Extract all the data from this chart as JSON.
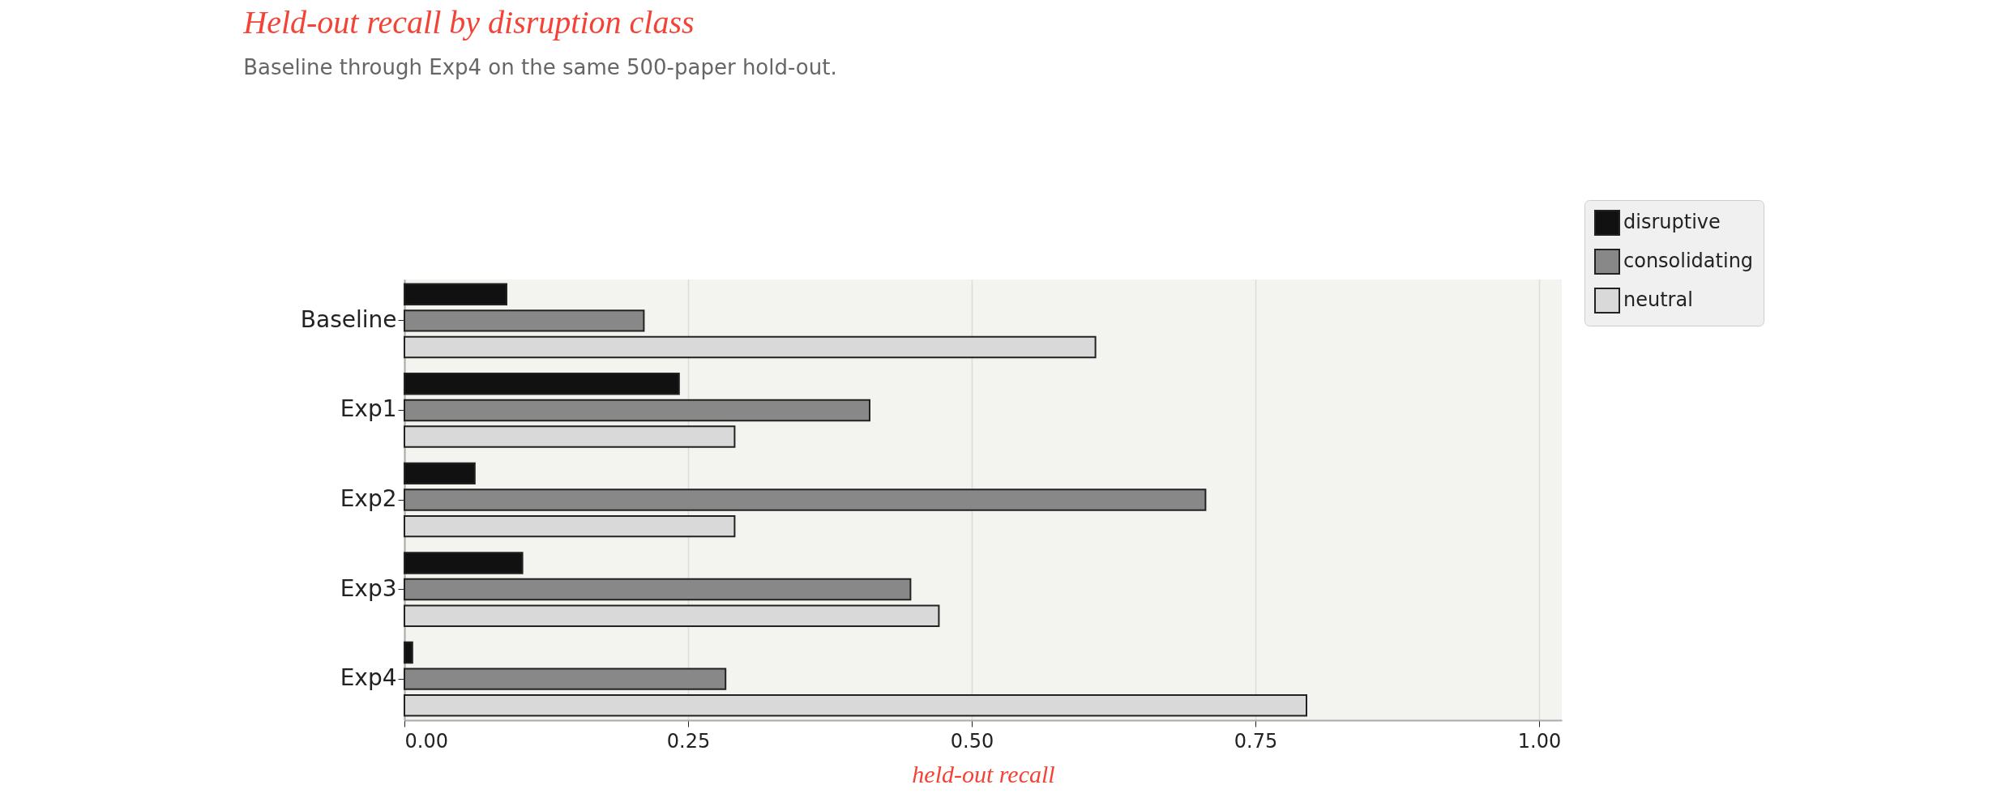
{
  "chart_data": {
    "type": "bar",
    "orientation": "horizontal",
    "title": "Held-out recall by disruption class",
    "subtitle": "Baseline through Exp4 on the same 500-paper hold-out.",
    "xlabel": "held-out recall",
    "categories": [
      "Baseline",
      "Exp1",
      "Exp2",
      "Exp3",
      "Exp4"
    ],
    "series": [
      {
        "name": "disruptive",
        "color": "#111111",
        "values": [
          0.09,
          0.242,
          0.062,
          0.104,
          0.007
        ]
      },
      {
        "name": "consolidating",
        "color": "#888888",
        "values": [
          0.211,
          0.41,
          0.706,
          0.446,
          0.283
        ]
      },
      {
        "name": "neutral",
        "color": "#d9d9d9",
        "values": [
          0.609,
          0.291,
          0.291,
          0.471,
          0.795
        ]
      }
    ],
    "xlim": [
      0,
      1.02
    ],
    "xticks": [
      {
        "value": 0,
        "label": "0.00"
      },
      {
        "value": 0.25,
        "label": "0.25"
      },
      {
        "value": 0.5,
        "label": "0.50"
      },
      {
        "value": 0.75,
        "label": "0.75"
      },
      {
        "value": 1,
        "label": "1.00"
      }
    ],
    "grid": "x",
    "legend": "top right"
  }
}
